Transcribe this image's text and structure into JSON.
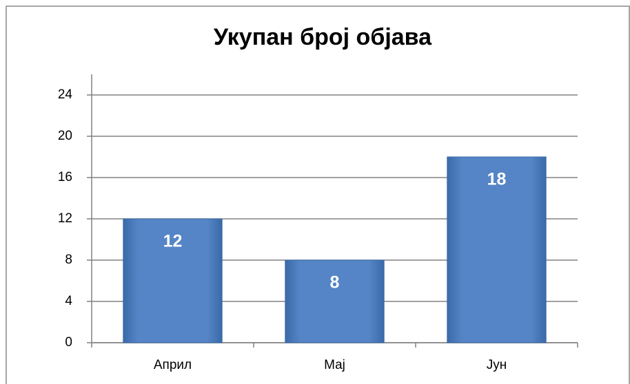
{
  "chart_data": {
    "type": "bar",
    "title": "Укупан број објава",
    "categories": [
      "Април",
      "Мај",
      "Јун"
    ],
    "values": [
      12,
      8,
      18
    ],
    "color": "#4f81bd",
    "ylim": [
      0,
      26
    ],
    "yticks": [
      0,
      4,
      8,
      12,
      16,
      20,
      24
    ],
    "grid": true
  }
}
